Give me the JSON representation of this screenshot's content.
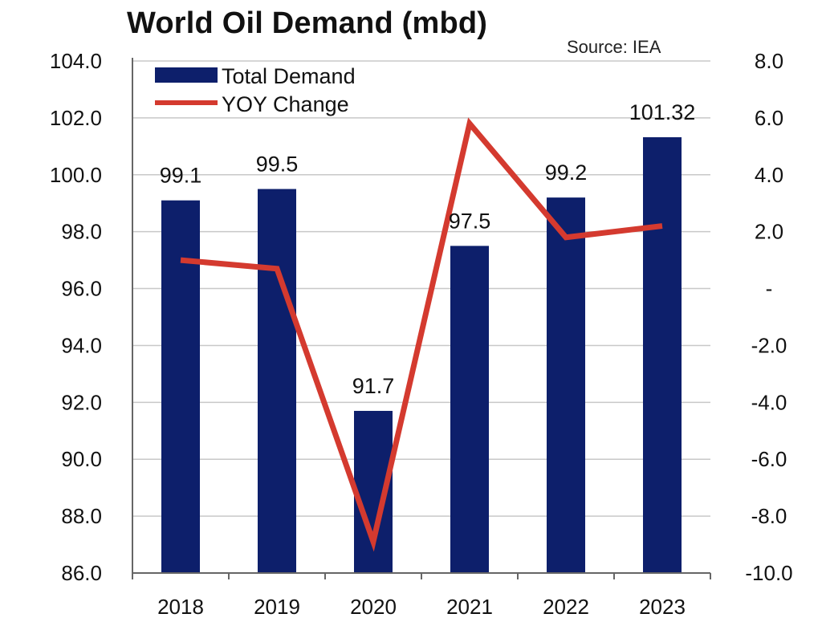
{
  "chart_data": {
    "type": "bar",
    "title": "World Oil Demand (mbd)",
    "source": "Source: IEA",
    "categories": [
      "2018",
      "2019",
      "2020",
      "2021",
      "2022",
      "2023"
    ],
    "series": [
      {
        "name": "Total Demand",
        "type": "bar",
        "axis": "left",
        "color": "#0d1f6b",
        "values": [
          99.1,
          99.5,
          91.7,
          97.5,
          99.2,
          101.32
        ],
        "labels": [
          "99.1",
          "99.5",
          "91.7",
          "97.5",
          "99.2",
          "101.32"
        ]
      },
      {
        "name": "YOY Change",
        "type": "line",
        "axis": "right",
        "color": "#d43a2f",
        "values": [
          1.0,
          0.7,
          -8.9,
          5.8,
          1.8,
          2.2
        ]
      }
    ],
    "left_axis": {
      "ylim": [
        86.0,
        104.0
      ],
      "ticks": [
        "86.0",
        "88.0",
        "90.0",
        "92.0",
        "94.0",
        "96.0",
        "98.0",
        "100.0",
        "102.0",
        "104.0"
      ]
    },
    "right_axis": {
      "ylim": [
        -10.0,
        8.0
      ],
      "ticks": [
        "-10.0",
        "-8.0",
        "-6.0",
        "-4.0",
        "-2.0",
        "-",
        "2.0",
        "4.0",
        "6.0",
        "8.0"
      ]
    },
    "grid": true,
    "legend_position": "top-left"
  }
}
